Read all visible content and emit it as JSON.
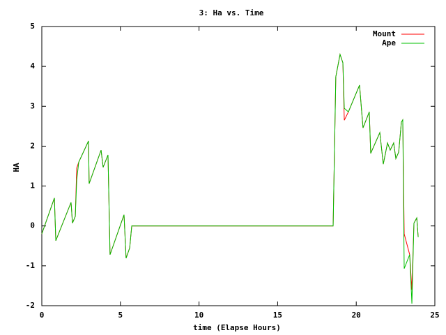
{
  "chart_data": {
    "type": "line",
    "title": "3: Ha vs. Time",
    "x_label": "time (Elapse Hours)",
    "y_label": "HA",
    "x": [
      0,
      0.8,
      0.89,
      1.86,
      1.95,
      2.13,
      2.22,
      2.35,
      2.97,
      3.01,
      3.77,
      3.9,
      4.21,
      4.34,
      5.23,
      5.36,
      5.59,
      5.72,
      18.53,
      18.7,
      18.97,
      19.15,
      19.24,
      19.5,
      20.21,
      20.43,
      20.83,
      20.92,
      21.5,
      21.72,
      21.99,
      22.16,
      22.38,
      22.52,
      22.7,
      22.87,
      22.96,
      23.05,
      23.4,
      23.54,
      23.67,
      23.85,
      23.94
    ],
    "series": [
      {
        "name": "Mount",
        "color": "#ff0000",
        "values": [
          -0.2,
          0.7,
          -0.37,
          0.59,
          0.07,
          0.24,
          1.45,
          1.6,
          2.13,
          1.06,
          1.9,
          1.47,
          1.78,
          -0.72,
          0.28,
          -0.81,
          -0.55,
          0,
          0,
          3.74,
          4.3,
          4.09,
          2.65,
          2.86,
          3.53,
          2.46,
          2.86,
          1.82,
          2.34,
          1.55,
          2.08,
          1.9,
          2.08,
          1.69,
          1.85,
          2.6,
          2.66,
          -0.2,
          -0.72,
          -1.6,
          0.07,
          0.2,
          -0.28
        ]
      },
      {
        "name": "Ape",
        "color": "#00c000",
        "values": [
          -0.2,
          0.7,
          -0.37,
          0.59,
          0.07,
          0.24,
          1.15,
          1.6,
          2.13,
          1.06,
          1.9,
          1.47,
          1.78,
          -0.72,
          0.28,
          -0.81,
          -0.55,
          0,
          0,
          3.74,
          4.3,
          4.09,
          2.95,
          2.86,
          3.53,
          2.46,
          2.86,
          1.82,
          2.34,
          1.55,
          2.08,
          1.9,
          2.08,
          1.69,
          1.85,
          2.6,
          2.66,
          -1.07,
          -0.72,
          -1.95,
          0.07,
          0.2,
          -0.28
        ]
      }
    ],
    "xlim": [
      0,
      25
    ],
    "xticks": [
      0,
      5,
      10,
      15,
      20,
      25
    ],
    "ylim": [
      -2,
      5
    ],
    "yticks": [
      -2,
      -1,
      0,
      1,
      2,
      3,
      4,
      5
    ],
    "legend": "top-right"
  }
}
